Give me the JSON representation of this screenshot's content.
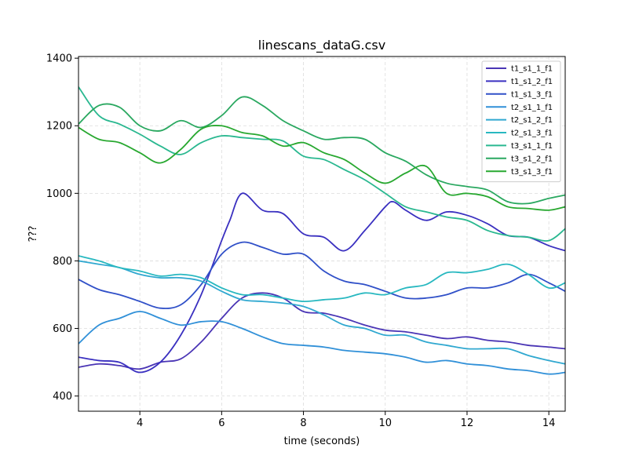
{
  "chart_data": {
    "type": "line",
    "title": "linescans_dataG.csv",
    "xlabel": "time (seconds)",
    "ylabel": "???",
    "xlim": [
      2.5,
      14.4
    ],
    "ylim": [
      355,
      1405
    ],
    "xticks": [
      4,
      6,
      8,
      10,
      12,
      14
    ],
    "yticks": [
      400,
      600,
      800,
      1000,
      1200,
      1400
    ],
    "grid": true,
    "legend_position": "top-right",
    "series": [
      {
        "name": "t1_s1_1_f1",
        "color": "#4a35b5",
        "x": [
          2.5,
          3.0,
          3.5,
          4.0,
          4.5,
          5.0,
          5.5,
          6.0,
          6.5,
          7.0,
          7.5,
          8.0,
          8.5,
          9.0,
          9.5,
          10.0,
          10.5,
          11.0,
          11.5,
          12.0,
          12.5,
          13.0,
          13.5,
          14.0,
          14.4
        ],
        "y": [
          485,
          495,
          490,
          480,
          500,
          510,
          560,
          630,
          690,
          705,
          690,
          650,
          645,
          630,
          610,
          595,
          590,
          580,
          570,
          575,
          565,
          560,
          550,
          545,
          540
        ]
      },
      {
        "name": "t1_s1_2_f1",
        "color": "#3a30c0",
        "x": [
          2.5,
          3.0,
          3.5,
          4.0,
          4.5,
          5.0,
          5.5,
          6.0,
          6.2,
          6.5,
          7.0,
          7.5,
          8.0,
          8.5,
          9.0,
          9.5,
          10.0,
          10.2,
          10.5,
          11.0,
          11.5,
          12.0,
          12.5,
          13.0,
          13.5,
          14.0,
          14.4
        ],
        "y": [
          515,
          505,
          500,
          470,
          500,
          580,
          700,
          860,
          920,
          1000,
          950,
          940,
          880,
          870,
          830,
          890,
          960,
          975,
          950,
          920,
          945,
          935,
          910,
          875,
          870,
          845,
          830
        ]
      },
      {
        "name": "t1_s1_3_f1",
        "color": "#3050c8",
        "x": [
          2.5,
          3.0,
          3.5,
          4.0,
          4.5,
          5.0,
          5.5,
          6.0,
          6.5,
          7.0,
          7.5,
          8.0,
          8.5,
          9.0,
          9.5,
          10.0,
          10.5,
          11.0,
          11.5,
          12.0,
          12.5,
          13.0,
          13.5,
          14.0,
          14.4
        ],
        "y": [
          745,
          715,
          700,
          680,
          660,
          670,
          730,
          820,
          855,
          840,
          820,
          820,
          770,
          740,
          730,
          710,
          690,
          690,
          700,
          720,
          720,
          735,
          760,
          735,
          710
        ]
      },
      {
        "name": "t2_s1_1_f1",
        "color": "#3090d8",
        "x": [
          2.5,
          3.0,
          3.5,
          4.0,
          4.5,
          5.0,
          5.5,
          6.0,
          6.5,
          7.0,
          7.5,
          8.0,
          8.5,
          9.0,
          9.5,
          10.0,
          10.5,
          11.0,
          11.5,
          12.0,
          12.5,
          13.0,
          13.5,
          14.0,
          14.4
        ],
        "y": [
          555,
          610,
          630,
          650,
          630,
          610,
          620,
          620,
          600,
          575,
          555,
          550,
          545,
          535,
          530,
          525,
          515,
          500,
          505,
          495,
          490,
          480,
          475,
          465,
          470
        ]
      },
      {
        "name": "t2_s1_2_f1",
        "color": "#30a8d0",
        "x": [
          2.5,
          3.0,
          3.5,
          4.0,
          4.5,
          5.0,
          5.5,
          6.0,
          6.5,
          7.0,
          7.5,
          8.0,
          8.5,
          9.0,
          9.5,
          10.0,
          10.5,
          11.0,
          11.5,
          12.0,
          12.5,
          13.0,
          13.5,
          14.0,
          14.4
        ],
        "y": [
          800,
          790,
          780,
          760,
          750,
          750,
          740,
          710,
          685,
          680,
          675,
          665,
          640,
          610,
          600,
          580,
          580,
          560,
          550,
          540,
          540,
          540,
          520,
          505,
          495
        ]
      },
      {
        "name": "t2_s1_3_f1",
        "color": "#28b8c0",
        "x": [
          2.5,
          3.0,
          3.5,
          4.0,
          4.5,
          5.0,
          5.5,
          6.0,
          6.5,
          7.0,
          7.5,
          8.0,
          8.5,
          9.0,
          9.5,
          10.0,
          10.5,
          11.0,
          11.5,
          12.0,
          12.5,
          13.0,
          13.5,
          14.0,
          14.4
        ],
        "y": [
          815,
          800,
          780,
          770,
          755,
          760,
          750,
          720,
          700,
          700,
          690,
          680,
          685,
          690,
          705,
          700,
          720,
          730,
          765,
          765,
          775,
          790,
          760,
          720,
          735
        ]
      },
      {
        "name": "t3_s1_1_f1",
        "color": "#2ab890",
        "x": [
          2.5,
          3.0,
          3.5,
          4.0,
          4.5,
          5.0,
          5.5,
          6.0,
          6.5,
          7.0,
          7.5,
          8.0,
          8.5,
          9.0,
          9.5,
          10.0,
          10.5,
          11.0,
          11.5,
          12.0,
          12.5,
          13.0,
          13.5,
          14.0,
          14.4
        ],
        "y": [
          1315,
          1230,
          1205,
          1175,
          1140,
          1115,
          1150,
          1170,
          1165,
          1160,
          1155,
          1110,
          1100,
          1070,
          1040,
          1000,
          960,
          945,
          930,
          920,
          890,
          875,
          870,
          860,
          895
        ]
      },
      {
        "name": "t3_s1_2_f1",
        "color": "#2aa860",
        "x": [
          2.5,
          3.0,
          3.5,
          4.0,
          4.5,
          5.0,
          5.5,
          6.0,
          6.5,
          7.0,
          7.5,
          8.0,
          8.5,
          9.0,
          9.5,
          10.0,
          10.5,
          11.0,
          11.5,
          12.0,
          12.5,
          13.0,
          13.5,
          14.0,
          14.4
        ],
        "y": [
          1205,
          1260,
          1255,
          1200,
          1185,
          1215,
          1195,
          1230,
          1285,
          1260,
          1215,
          1185,
          1160,
          1165,
          1160,
          1120,
          1095,
          1055,
          1030,
          1020,
          1010,
          975,
          970,
          985,
          995
        ]
      },
      {
        "name": "t3_s1_3_f1",
        "color": "#28a830",
        "x": [
          2.5,
          3.0,
          3.5,
          4.0,
          4.5,
          5.0,
          5.5,
          6.0,
          6.5,
          7.0,
          7.5,
          8.0,
          8.5,
          9.0,
          9.5,
          10.0,
          10.5,
          11.0,
          11.5,
          12.0,
          12.5,
          13.0,
          13.5,
          14.0,
          14.4
        ],
        "y": [
          1195,
          1160,
          1150,
          1120,
          1090,
          1130,
          1190,
          1200,
          1180,
          1170,
          1140,
          1150,
          1120,
          1100,
          1060,
          1030,
          1060,
          1080,
          1000,
          1000,
          990,
          960,
          955,
          950,
          960
        ]
      }
    ]
  }
}
